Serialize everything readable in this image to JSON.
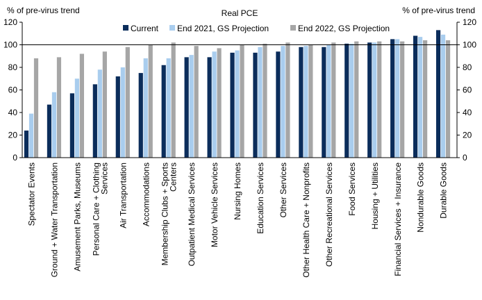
{
  "chart_data": {
    "type": "bar",
    "title": "Real PCE",
    "ylabel_left": "% of pre-virus  trend",
    "ylabel_right": "% of pre-virus  trend",
    "ylim": [
      0,
      120
    ],
    "yticks": [
      "0",
      "20",
      "40",
      "60",
      "80",
      "100",
      "120"
    ],
    "reference_line": 100,
    "legend_position": "top-center",
    "categories": [
      [
        "Spectator Events"
      ],
      [
        "Ground + Water Transportation"
      ],
      [
        "Amusement Parks, Museums"
      ],
      [
        "Personal Care + Clothing",
        "Services"
      ],
      [
        "Air Transportation"
      ],
      [
        "Accommodations"
      ],
      [
        "Membership Clubs + Sports",
        "Centers"
      ],
      [
        "Outpatient Medical Services"
      ],
      [
        "Motor Vehicle Services"
      ],
      [
        "Nursing Homes"
      ],
      [
        "Education Services"
      ],
      [
        "Other Services"
      ],
      [
        "Other Health Care + Nonprofits"
      ],
      [
        "Other Recreational Services"
      ],
      [
        "Food Services"
      ],
      [
        "Housing + Utilities"
      ],
      [
        "Financial Services + Insurance"
      ],
      [
        "Nondurable Goods"
      ],
      [
        "Durable Goods"
      ]
    ],
    "series": [
      {
        "name": "Current",
        "color": "#0b2d5b",
        "values": [
          24,
          47,
          57,
          65,
          72,
          75,
          82,
          89,
          89,
          93,
          93,
          94,
          98,
          98,
          101,
          102,
          105,
          108,
          113
        ]
      },
      {
        "name": "End 2021, GS Projection",
        "color": "#a9cdee",
        "values": [
          39,
          58,
          70,
          78,
          80,
          88,
          88,
          91,
          94,
          95,
          98,
          99,
          99,
          100,
          101,
          102,
          105,
          107,
          109
        ]
      },
      {
        "name": "End 2022, GS Projection",
        "color": "#a6a6a6",
        "values": [
          88,
          89,
          92,
          94,
          98,
          100,
          102,
          99,
          97,
          100,
          101,
          102,
          100,
          102,
          103,
          103,
          103,
          104,
          104
        ]
      }
    ]
  }
}
